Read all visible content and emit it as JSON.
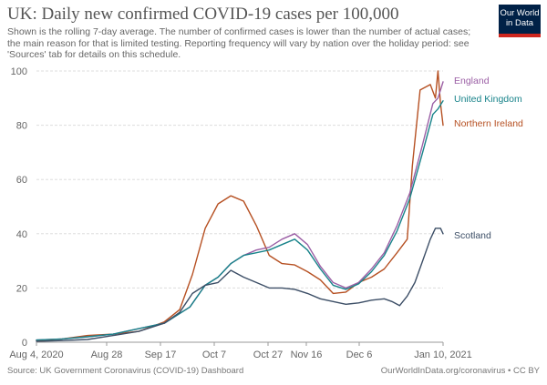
{
  "header": {
    "title": "UK: Daily new confirmed COVID-19 cases per 100,000",
    "subtitle": "Shown is the rolling 7-day average. The number of confirmed cases is lower than the number of actual cases; the main reason for that is limited testing. Reporting frequency will vary by nation over the holiday period: see 'Sources' tab for details on this schedule."
  },
  "logo": {
    "line1": "Our World",
    "line2": "in Data"
  },
  "footer": {
    "source": "Source: UK Government Coronavirus (COVID-19) Dashboard",
    "credit": "OurWorldInData.org/coronavirus • CC BY"
  },
  "colors": {
    "England": "#9b5fa5",
    "United Kingdom": "#18838a",
    "Northern Ireland": "#b65022",
    "Scotland": "#3c4e66",
    "grid": "#dddddd",
    "axis_text": "#666666"
  },
  "chart_data": {
    "type": "line",
    "title": "UK: Daily new confirmed COVID-19 cases per 100,000",
    "xlabel": "",
    "ylabel": "",
    "x_ticks": [
      "Aug 4, 2020",
      "Aug 28",
      "Sep 17",
      "Oct 7",
      "Oct 27",
      "Nov 16",
      "Dec 6",
      "Jan 10, 2021"
    ],
    "y_ticks": [
      0,
      20,
      40,
      60,
      80,
      100
    ],
    "ylim": [
      0,
      100
    ],
    "xlim": [
      "2020-08-04",
      "2021-01-10"
    ],
    "grid": true,
    "legend_placement": "right, at line ends",
    "series": [
      {
        "name": "Northern Ireland",
        "color": "#b65022",
        "points": [
          [
            "2020-08-04",
            0.5
          ],
          [
            "2020-08-14",
            1.2
          ],
          [
            "2020-08-24",
            2.5
          ],
          [
            "2020-09-03",
            3.0
          ],
          [
            "2020-09-13",
            4.0
          ],
          [
            "2020-09-23",
            7.5
          ],
          [
            "2020-09-29",
            12.0
          ],
          [
            "2020-10-04",
            25.0
          ],
          [
            "2020-10-09",
            42.0
          ],
          [
            "2020-10-14",
            51.0
          ],
          [
            "2020-10-19",
            54.0
          ],
          [
            "2020-10-24",
            52.0
          ],
          [
            "2020-10-29",
            43.0
          ],
          [
            "2020-11-03",
            32.0
          ],
          [
            "2020-11-08",
            29.0
          ],
          [
            "2020-11-13",
            28.5
          ],
          [
            "2020-11-18",
            26.0
          ],
          [
            "2020-11-23",
            23.0
          ],
          [
            "2020-11-28",
            18.0
          ],
          [
            "2020-12-03",
            18.5
          ],
          [
            "2020-12-08",
            22.0
          ],
          [
            "2020-12-13",
            24.0
          ],
          [
            "2020-12-18",
            27.0
          ],
          [
            "2020-12-23",
            33.0
          ],
          [
            "2020-12-27",
            38.0
          ],
          [
            "2020-12-29",
            65.0
          ],
          [
            "2021-01-01",
            93.0
          ],
          [
            "2021-01-05",
            95.0
          ],
          [
            "2021-01-07",
            90.0
          ],
          [
            "2021-01-08",
            100.0
          ],
          [
            "2021-01-09",
            88.0
          ],
          [
            "2021-01-10",
            80.0
          ]
        ]
      },
      {
        "name": "England",
        "color": "#9b5fa5",
        "points": [
          [
            "2020-08-04",
            0.8
          ],
          [
            "2020-08-14",
            1.2
          ],
          [
            "2020-08-24",
            2.0
          ],
          [
            "2020-09-03",
            3.0
          ],
          [
            "2020-09-13",
            5.0
          ],
          [
            "2020-09-23",
            7.0
          ],
          [
            "2020-10-03",
            13.0
          ],
          [
            "2020-10-09",
            21.0
          ],
          [
            "2020-10-14",
            24.0
          ],
          [
            "2020-10-19",
            29.0
          ],
          [
            "2020-10-24",
            32.0
          ],
          [
            "2020-10-29",
            34.0
          ],
          [
            "2020-11-03",
            35.0
          ],
          [
            "2020-11-08",
            38.0
          ],
          [
            "2020-11-13",
            40.0
          ],
          [
            "2020-11-18",
            36.0
          ],
          [
            "2020-11-23",
            28.0
          ],
          [
            "2020-11-28",
            22.0
          ],
          [
            "2020-12-03",
            20.0
          ],
          [
            "2020-12-08",
            22.0
          ],
          [
            "2020-12-13",
            27.0
          ],
          [
            "2020-12-18",
            33.0
          ],
          [
            "2020-12-23",
            43.0
          ],
          [
            "2020-12-28",
            55.0
          ],
          [
            "2021-01-02",
            73.0
          ],
          [
            "2021-01-06",
            88.0
          ],
          [
            "2021-01-08",
            90.0
          ],
          [
            "2021-01-10",
            96.0
          ]
        ]
      },
      {
        "name": "United Kingdom",
        "color": "#18838a",
        "points": [
          [
            "2020-08-04",
            0.8
          ],
          [
            "2020-08-14",
            1.2
          ],
          [
            "2020-08-24",
            2.0
          ],
          [
            "2020-09-03",
            3.0
          ],
          [
            "2020-09-13",
            5.0
          ],
          [
            "2020-09-23",
            7.0
          ],
          [
            "2020-10-03",
            13.0
          ],
          [
            "2020-10-09",
            21.0
          ],
          [
            "2020-10-14",
            24.0
          ],
          [
            "2020-10-19",
            29.0
          ],
          [
            "2020-10-24",
            32.0
          ],
          [
            "2020-10-29",
            33.0
          ],
          [
            "2020-11-03",
            34.0
          ],
          [
            "2020-11-08",
            36.0
          ],
          [
            "2020-11-13",
            38.0
          ],
          [
            "2020-11-18",
            34.0
          ],
          [
            "2020-11-23",
            27.0
          ],
          [
            "2020-11-28",
            21.0
          ],
          [
            "2020-12-03",
            19.5
          ],
          [
            "2020-12-08",
            21.5
          ],
          [
            "2020-12-13",
            26.0
          ],
          [
            "2020-12-18",
            32.0
          ],
          [
            "2020-12-23",
            41.0
          ],
          [
            "2020-12-28",
            53.0
          ],
          [
            "2021-01-02",
            70.0
          ],
          [
            "2021-01-06",
            84.0
          ],
          [
            "2021-01-08",
            86.0
          ],
          [
            "2021-01-10",
            89.0
          ]
        ]
      },
      {
        "name": "Scotland",
        "color": "#3c4e66",
        "points": [
          [
            "2020-08-04",
            0.3
          ],
          [
            "2020-08-14",
            0.6
          ],
          [
            "2020-08-24",
            1.0
          ],
          [
            "2020-09-03",
            2.5
          ],
          [
            "2020-09-13",
            4.0
          ],
          [
            "2020-09-23",
            7.0
          ],
          [
            "2020-09-29",
            11.0
          ],
          [
            "2020-10-04",
            18.0
          ],
          [
            "2020-10-09",
            21.0
          ],
          [
            "2020-10-14",
            22.0
          ],
          [
            "2020-10-19",
            26.5
          ],
          [
            "2020-10-24",
            24.0
          ],
          [
            "2020-10-29",
            22.0
          ],
          [
            "2020-11-03",
            20.0
          ],
          [
            "2020-11-08",
            20.0
          ],
          [
            "2020-11-13",
            19.5
          ],
          [
            "2020-11-18",
            18.0
          ],
          [
            "2020-11-23",
            16.0
          ],
          [
            "2020-11-28",
            15.0
          ],
          [
            "2020-12-03",
            14.0
          ],
          [
            "2020-12-08",
            14.5
          ],
          [
            "2020-12-13",
            15.5
          ],
          [
            "2020-12-18",
            16.0
          ],
          [
            "2020-12-21",
            15.0
          ],
          [
            "2020-12-24",
            13.5
          ],
          [
            "2020-12-27",
            17.0
          ],
          [
            "2020-12-30",
            22.0
          ],
          [
            "2021-01-02",
            30.0
          ],
          [
            "2021-01-05",
            38.0
          ],
          [
            "2021-01-07",
            42.0
          ],
          [
            "2021-01-09",
            42.0
          ],
          [
            "2021-01-10",
            40.0
          ]
        ]
      }
    ]
  }
}
